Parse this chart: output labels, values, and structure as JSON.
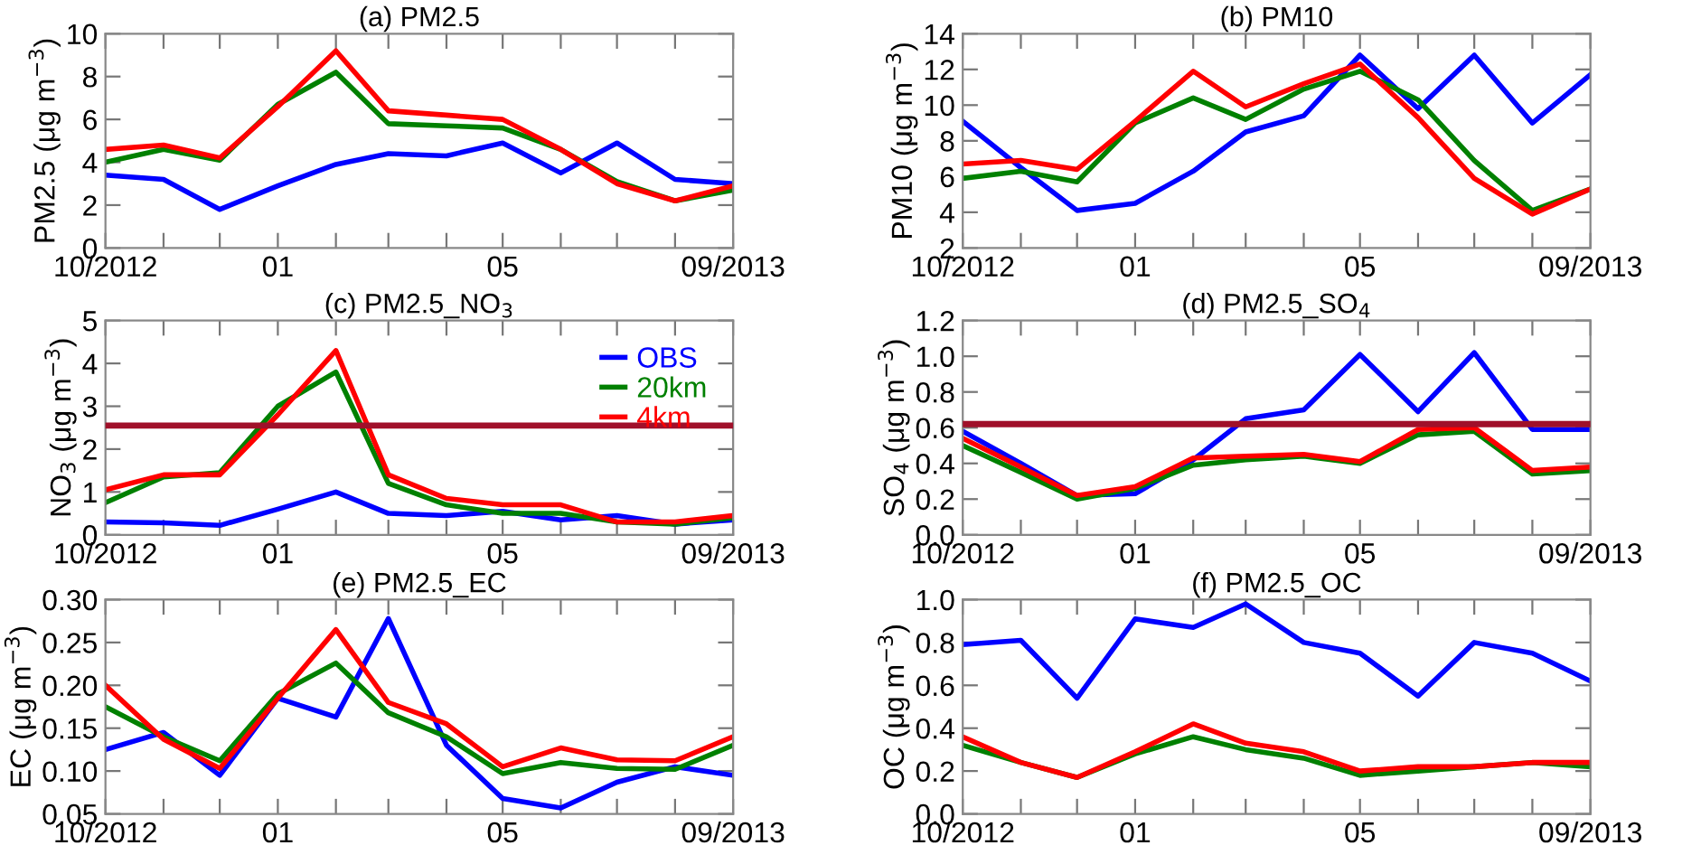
{
  "chart_data": [
    {
      "type": "line",
      "title": "(a) PM2.5",
      "ylabel": "PM2.5 (μg m$^{−3}$)",
      "x": [
        "2012-10",
        "2012-11",
        "2012-12",
        "2013-01",
        "2013-02",
        "2013-03",
        "2013-04",
        "2013-05",
        "2013-06",
        "2013-07",
        "2013-08",
        "2013-09"
      ],
      "xlim": [
        "2012-10",
        "2013-09"
      ],
      "xticks": [
        {
          "value": "2012-10",
          "label": "10/2012"
        },
        {
          "value": "2012-11",
          "label": null
        },
        {
          "value": "2012-12",
          "label": null
        },
        {
          "value": "2013-01",
          "label": "01"
        },
        {
          "value": "2013-02",
          "label": null
        },
        {
          "value": "2013-03",
          "label": null
        },
        {
          "value": "2013-04",
          "label": null
        },
        {
          "value": "2013-05",
          "label": "05"
        },
        {
          "value": "2013-06",
          "label": null
        },
        {
          "value": "2013-07",
          "label": null
        },
        {
          "value": "2013-08",
          "label": null
        },
        {
          "value": "2013-09",
          "label": "09/2013"
        }
      ],
      "ylim": [
        0,
        10
      ],
      "yticks": [
        0,
        2,
        4,
        6,
        8,
        10
      ],
      "grid": false,
      "legend": false,
      "series": [
        {
          "color": "#0000ff",
          "values": [
            3.4,
            3.2,
            1.8,
            2.9,
            3.9,
            4.4,
            4.3,
            4.9,
            3.5,
            4.9,
            3.2,
            3.0
          ]
        },
        {
          "color": "#008000",
          "values": [
            4.0,
            4.6,
            4.1,
            6.7,
            8.2,
            5.8,
            5.7,
            5.6,
            4.6,
            3.1,
            2.2,
            2.7
          ]
        },
        {
          "color": "#ff0000",
          "values": [
            4.6,
            4.8,
            4.2,
            6.6,
            9.2,
            6.4,
            6.2,
            6.0,
            4.6,
            3.0,
            2.2,
            2.9
          ]
        }
      ]
    },
    {
      "type": "line",
      "title": "(b) PM10",
      "ylabel": "PM10 (μg m$^{−3}$)",
      "x": [
        "2012-10",
        "2012-11",
        "2012-12",
        "2013-01",
        "2013-02",
        "2013-03",
        "2013-04",
        "2013-05",
        "2013-06",
        "2013-07",
        "2013-08",
        "2013-09"
      ],
      "xlim": [
        "2012-10",
        "2013-09"
      ],
      "xticks": [
        {
          "value": "2012-10",
          "label": "10/2012"
        },
        {
          "value": "2012-11",
          "label": null
        },
        {
          "value": "2012-12",
          "label": null
        },
        {
          "value": "2013-01",
          "label": "01"
        },
        {
          "value": "2013-02",
          "label": null
        },
        {
          "value": "2013-03",
          "label": null
        },
        {
          "value": "2013-04",
          "label": null
        },
        {
          "value": "2013-05",
          "label": "05"
        },
        {
          "value": "2013-06",
          "label": null
        },
        {
          "value": "2013-07",
          "label": null
        },
        {
          "value": "2013-08",
          "label": null
        },
        {
          "value": "2013-09",
          "label": "09/2013"
        }
      ],
      "ylim": [
        2,
        14
      ],
      "yticks": [
        2,
        4,
        6,
        8,
        10,
        12,
        14
      ],
      "grid": false,
      "legend": false,
      "series": [
        {
          "color": "#0000ff",
          "values": [
            9.1,
            6.5,
            4.1,
            4.5,
            6.3,
            8.5,
            9.4,
            12.8,
            9.8,
            12.8,
            9.0,
            11.7
          ]
        },
        {
          "color": "#008000",
          "values": [
            5.9,
            6.3,
            5.7,
            9.0,
            10.4,
            9.2,
            10.9,
            11.9,
            10.3,
            6.9,
            4.1,
            5.3
          ]
        },
        {
          "color": "#ff0000",
          "values": [
            6.7,
            6.9,
            6.4,
            9.1,
            11.9,
            9.9,
            11.2,
            12.3,
            9.3,
            5.9,
            3.9,
            5.3
          ]
        }
      ]
    },
    {
      "type": "line",
      "title": "(c) PM2.5_NO$_{3}$",
      "ylabel": "NO$_{3}$ (μg m$^{−3}$)",
      "x": [
        "2012-10",
        "2012-11",
        "2012-12",
        "2013-01",
        "2013-02",
        "2013-03",
        "2013-04",
        "2013-05",
        "2013-06",
        "2013-07",
        "2013-08",
        "2013-09"
      ],
      "xlim": [
        "2012-10",
        "2013-09"
      ],
      "xticks": [
        {
          "value": "2012-10",
          "label": "10/2012"
        },
        {
          "value": "2012-11",
          "label": null
        },
        {
          "value": "2012-12",
          "label": null
        },
        {
          "value": "2013-01",
          "label": "01"
        },
        {
          "value": "2013-02",
          "label": null
        },
        {
          "value": "2013-03",
          "label": null
        },
        {
          "value": "2013-04",
          "label": null
        },
        {
          "value": "2013-05",
          "label": "05"
        },
        {
          "value": "2013-06",
          "label": null
        },
        {
          "value": "2013-07",
          "label": null
        },
        {
          "value": "2013-08",
          "label": null
        },
        {
          "value": "2013-09",
          "label": "09/2013"
        }
      ],
      "ylim": [
        0,
        5
      ],
      "yticks": [
        0,
        1,
        2,
        3,
        4,
        5
      ],
      "grid": false,
      "legend": "top right",
      "ref_lines": [
        {
          "axis": "y",
          "value": 2.55,
          "color": "#a0102a"
        }
      ],
      "series": [
        {
          "name": "OBS",
          "color": "#0000ff",
          "values": [
            0.3,
            0.28,
            0.22,
            0.6,
            1.0,
            0.5,
            0.45,
            0.55,
            0.35,
            0.45,
            0.25,
            0.35
          ]
        },
        {
          "name": "20km",
          "color": "#008000",
          "values": [
            0.75,
            1.35,
            1.45,
            3.0,
            3.8,
            1.2,
            0.7,
            0.5,
            0.5,
            0.3,
            0.25,
            0.4
          ]
        },
        {
          "name": "4km",
          "color": "#ff0000",
          "values": [
            1.05,
            1.4,
            1.4,
            2.8,
            4.3,
            1.4,
            0.85,
            0.7,
            0.7,
            0.3,
            0.3,
            0.45
          ]
        }
      ]
    },
    {
      "type": "line",
      "title": "(d) PM2.5_SO$_{4}$",
      "ylabel": "SO$_{4}$ (μg m$^{−3}$)",
      "x": [
        "2012-10",
        "2012-11",
        "2012-12",
        "2013-01",
        "2013-02",
        "2013-03",
        "2013-04",
        "2013-05",
        "2013-06",
        "2013-07",
        "2013-08",
        "2013-09"
      ],
      "xlim": [
        "2012-10",
        "2013-09"
      ],
      "xticks": [
        {
          "value": "2012-10",
          "label": "10/2012"
        },
        {
          "value": "2012-11",
          "label": null
        },
        {
          "value": "2012-12",
          "label": null
        },
        {
          "value": "2013-01",
          "label": "01"
        },
        {
          "value": "2013-02",
          "label": null
        },
        {
          "value": "2013-03",
          "label": null
        },
        {
          "value": "2013-04",
          "label": null
        },
        {
          "value": "2013-05",
          "label": "05"
        },
        {
          "value": "2013-06",
          "label": null
        },
        {
          "value": "2013-07",
          "label": null
        },
        {
          "value": "2013-08",
          "label": null
        },
        {
          "value": "2013-09",
          "label": "09/2013"
        }
      ],
      "ylim": [
        0,
        1.2
      ],
      "yticks": [
        {
          "value": 0,
          "label": "0.0"
        },
        {
          "value": 0.2,
          "label": "0.2"
        },
        {
          "value": 0.4,
          "label": "0.4"
        },
        {
          "value": 0.6,
          "label": "0.6"
        },
        {
          "value": 0.8,
          "label": "0.8"
        },
        {
          "value": 1,
          "label": "1.0"
        },
        {
          "value": 1.2,
          "label": "1.2"
        }
      ],
      "grid": false,
      "legend": false,
      "ref_lines": [
        {
          "axis": "y",
          "value": 0.62,
          "color": "#a0102a"
        }
      ],
      "series": [
        {
          "color": "#0000ff",
          "values": [
            0.58,
            0.4,
            0.22,
            0.23,
            0.42,
            0.65,
            0.7,
            1.01,
            0.69,
            1.02,
            0.59,
            0.59
          ]
        },
        {
          "color": "#008000",
          "values": [
            0.5,
            0.35,
            0.2,
            0.26,
            0.39,
            0.42,
            0.44,
            0.4,
            0.56,
            0.58,
            0.34,
            0.36
          ]
        },
        {
          "color": "#ff0000",
          "values": [
            0.54,
            0.38,
            0.22,
            0.27,
            0.43,
            0.44,
            0.45,
            0.41,
            0.59,
            0.6,
            0.36,
            0.38
          ]
        }
      ]
    },
    {
      "type": "line",
      "title": "(e) PM2.5_EC",
      "ylabel": "EC (μg m$^{−3}$)",
      "x": [
        "2012-10",
        "2012-11",
        "2012-12",
        "2013-01",
        "2013-02",
        "2013-03",
        "2013-04",
        "2013-05",
        "2013-06",
        "2013-07",
        "2013-08",
        "2013-09"
      ],
      "xlim": [
        "2012-10",
        "2013-09"
      ],
      "xticks": [
        {
          "value": "2012-10",
          "label": "10/2012"
        },
        {
          "value": "2012-11",
          "label": null
        },
        {
          "value": "2012-12",
          "label": null
        },
        {
          "value": "2013-01",
          "label": "01"
        },
        {
          "value": "2013-02",
          "label": null
        },
        {
          "value": "2013-03",
          "label": null
        },
        {
          "value": "2013-04",
          "label": null
        },
        {
          "value": "2013-05",
          "label": "05"
        },
        {
          "value": "2013-06",
          "label": null
        },
        {
          "value": "2013-07",
          "label": null
        },
        {
          "value": "2013-08",
          "label": null
        },
        {
          "value": "2013-09",
          "label": "09/2013"
        }
      ],
      "ylim": [
        0.05,
        0.3
      ],
      "yticks": [
        {
          "value": 0.05,
          "label": "0.05"
        },
        {
          "value": 0.1,
          "label": "0.10"
        },
        {
          "value": 0.15,
          "label": "0.15"
        },
        {
          "value": 0.2,
          "label": "0.20"
        },
        {
          "value": 0.25,
          "label": "0.25"
        },
        {
          "value": 0.3,
          "label": "0.30"
        }
      ],
      "grid": false,
      "legend": false,
      "series": [
        {
          "color": "#0000ff",
          "values": [
            0.125,
            0.145,
            0.095,
            0.185,
            0.163,
            0.278,
            0.13,
            0.068,
            0.057,
            0.087,
            0.105,
            0.095
          ]
        },
        {
          "color": "#008000",
          "values": [
            0.175,
            0.14,
            0.112,
            0.19,
            0.226,
            0.168,
            0.14,
            0.097,
            0.11,
            0.103,
            0.102,
            0.13
          ]
        },
        {
          "color": "#ff0000",
          "values": [
            0.2,
            0.137,
            0.103,
            0.185,
            0.265,
            0.18,
            0.155,
            0.105,
            0.127,
            0.113,
            0.112,
            0.14
          ]
        }
      ]
    },
    {
      "type": "line",
      "title": "(f) PM2.5_OC",
      "ylabel": "OC (μg m$^{−3}$)",
      "x": [
        "2012-10",
        "2012-11",
        "2012-12",
        "2013-01",
        "2013-02",
        "2013-03",
        "2013-04",
        "2013-05",
        "2013-06",
        "2013-07",
        "2013-08",
        "2013-09"
      ],
      "xlim": [
        "2012-10",
        "2013-09"
      ],
      "xticks": [
        {
          "value": "2012-10",
          "label": "10/2012"
        },
        {
          "value": "2012-11",
          "label": null
        },
        {
          "value": "2012-12",
          "label": null
        },
        {
          "value": "2013-01",
          "label": "01"
        },
        {
          "value": "2013-02",
          "label": null
        },
        {
          "value": "2013-03",
          "label": null
        },
        {
          "value": "2013-04",
          "label": null
        },
        {
          "value": "2013-05",
          "label": "05"
        },
        {
          "value": "2013-06",
          "label": null
        },
        {
          "value": "2013-07",
          "label": null
        },
        {
          "value": "2013-08",
          "label": null
        },
        {
          "value": "2013-09",
          "label": "09/2013"
        }
      ],
      "ylim": [
        0,
        1
      ],
      "yticks": [
        {
          "value": 0,
          "label": "0.0"
        },
        {
          "value": 0.2,
          "label": "0.2"
        },
        {
          "value": 0.4,
          "label": "0.4"
        },
        {
          "value": 0.6,
          "label": "0.6"
        },
        {
          "value": 0.8,
          "label": "0.8"
        },
        {
          "value": 1,
          "label": "1.0"
        }
      ],
      "grid": false,
      "legend": false,
      "series": [
        {
          "color": "#0000ff",
          "values": [
            0.79,
            0.81,
            0.54,
            0.91,
            0.87,
            0.98,
            0.8,
            0.75,
            0.55,
            0.8,
            0.75,
            0.62
          ]
        },
        {
          "color": "#008000",
          "values": [
            0.32,
            0.24,
            0.17,
            0.28,
            0.36,
            0.3,
            0.26,
            0.18,
            0.2,
            0.22,
            0.24,
            0.22
          ]
        },
        {
          "color": "#ff0000",
          "values": [
            0.36,
            0.24,
            0.17,
            0.29,
            0.42,
            0.33,
            0.29,
            0.2,
            0.22,
            0.22,
            0.24,
            0.24
          ]
        }
      ]
    }
  ]
}
